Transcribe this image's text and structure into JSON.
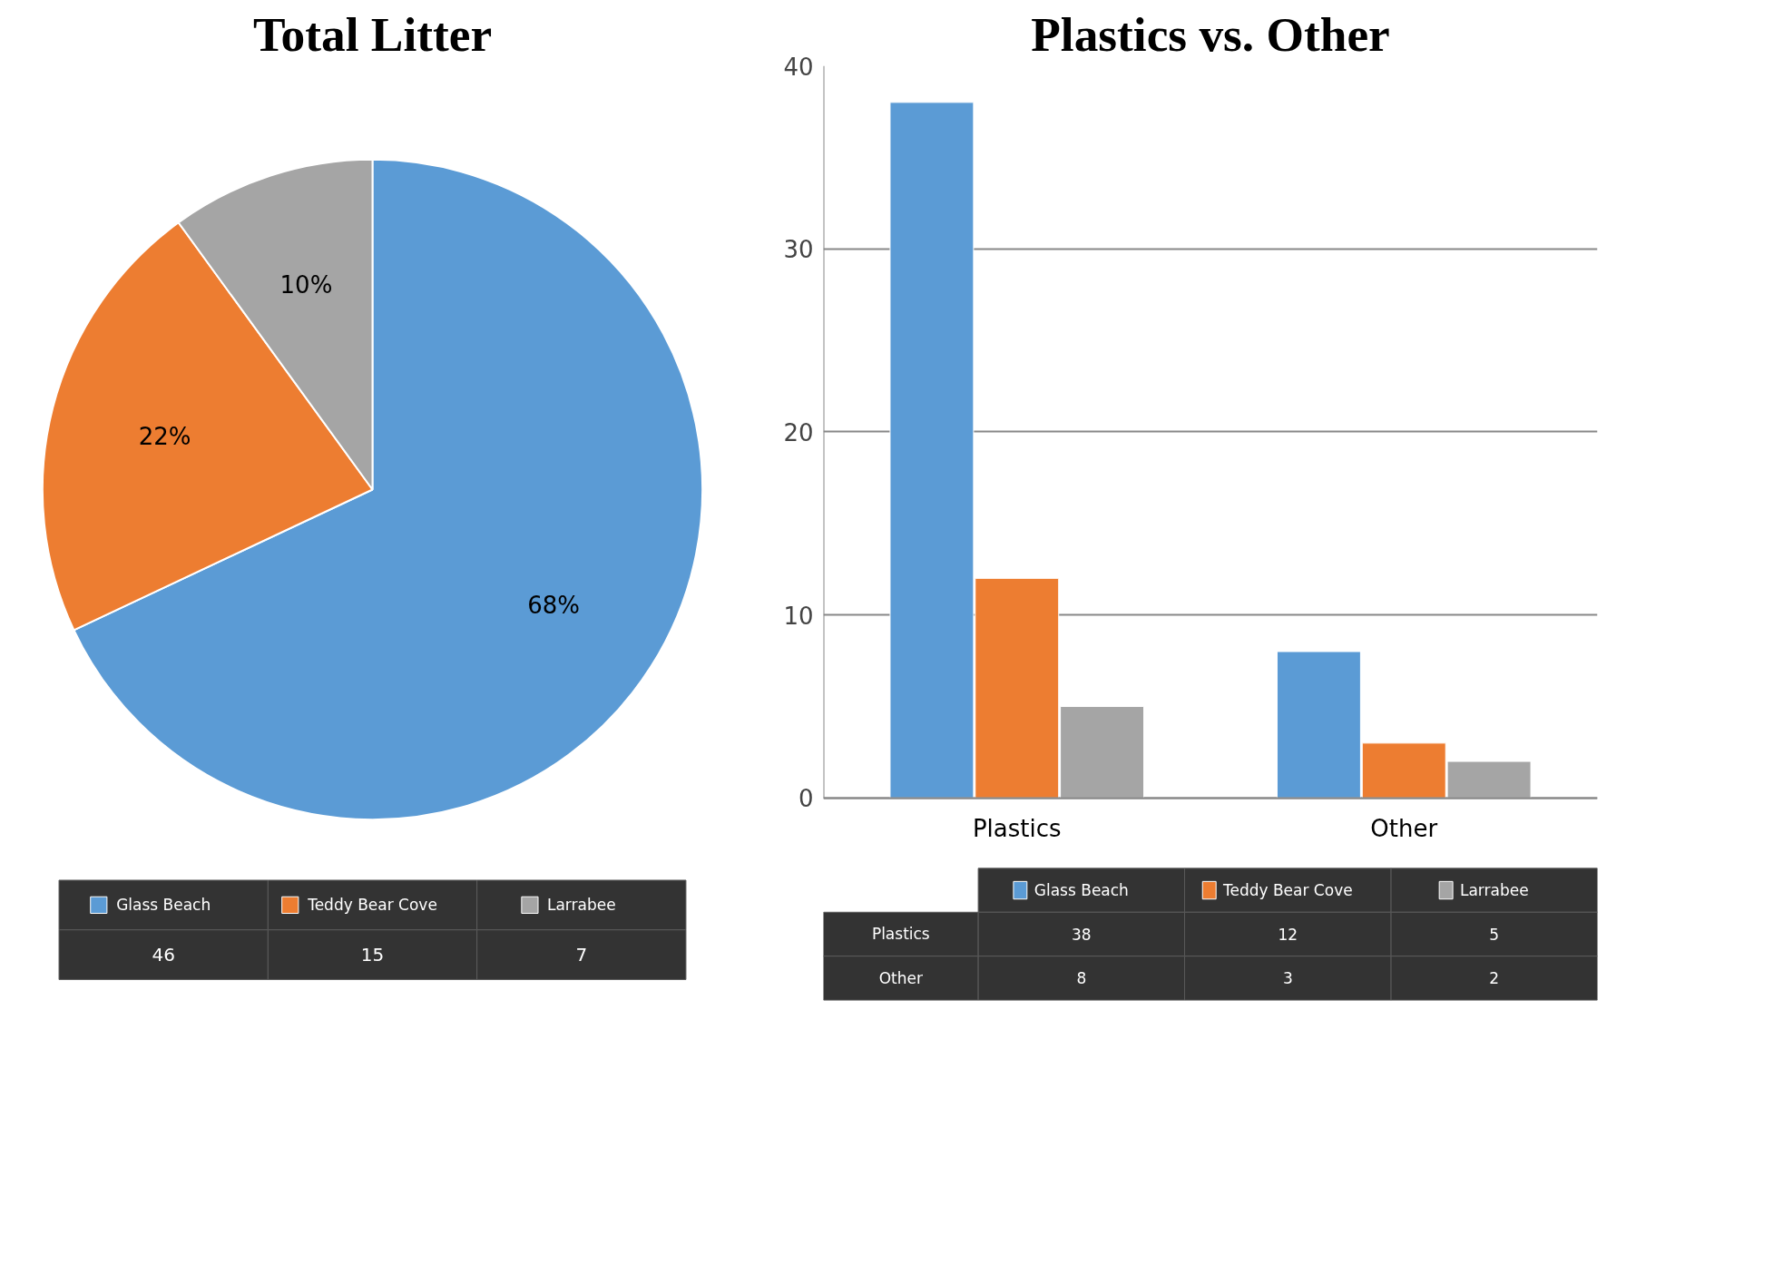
{
  "chart_data": [
    {
      "type": "pie",
      "title": "Total Litter",
      "categories": [
        "Glass Beach",
        "Teddy Bear Cove",
        "Larrabee"
      ],
      "values": [
        68,
        22,
        10
      ],
      "colors": [
        "#5b9bd5",
        "#ed7d31",
        "#a5a5a5"
      ],
      "value_labels": [
        "68%",
        "22%",
        "10%"
      ],
      "legend": "bottom",
      "annotations": [
        "46",
        "15",
        "7"
      ]
    },
    {
      "type": "bar",
      "title": "Plastics vs. Other",
      "categories": [
        "Plastics",
        "Other"
      ],
      "series": [
        {
          "name": "Glass Beach",
          "color": "#5b9bd5",
          "values": [
            38,
            8
          ]
        },
        {
          "name": "Teddy Bear Cove",
          "color": "#ed7d31",
          "values": [
            12,
            3
          ]
        },
        {
          "name": "Larrabee",
          "color": "#a5a5a5",
          "values": [
            5,
            2
          ]
        }
      ],
      "ylim": [
        0,
        40
      ],
      "yticks": [
        0,
        10,
        20,
        30,
        40
      ],
      "grid": "y",
      "legend": "bottom",
      "annotations": [
        "38",
        "12",
        "5",
        "8",
        "3",
        "2"
      ]
    }
  ]
}
